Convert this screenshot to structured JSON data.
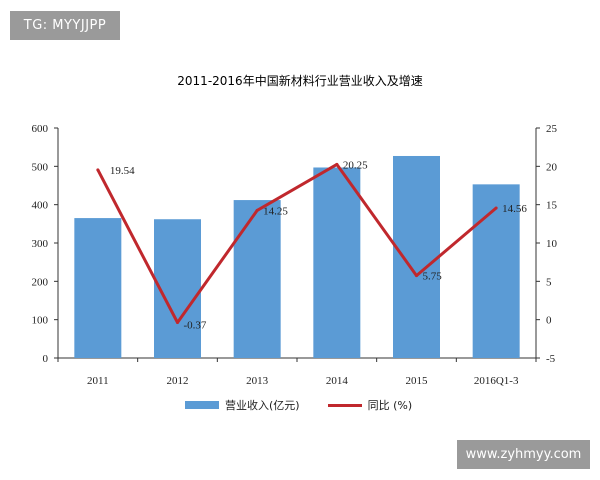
{
  "watermark_top": "TG: MYYJJPP",
  "watermark_bottom": "www.zyhmyy.com",
  "legend": {
    "bar_label": "营业收入(亿元)",
    "line_label": "同比 (%)"
  },
  "chart_data": {
    "type": "bar",
    "title": "2011-2016年中国新材料行业营业收入及增速",
    "categories": [
      "2011",
      "2012",
      "2013",
      "2014",
      "2015",
      "2016Q1-3"
    ],
    "series": [
      {
        "name": "营业收入(亿元)",
        "type": "bar",
        "axis": "left",
        "color": "#5b9bd5",
        "values": [
          365,
          362,
          412,
          497,
          527,
          453
        ]
      },
      {
        "name": "同比 (%)",
        "type": "line",
        "axis": "right",
        "color": "#c0282d",
        "values": [
          19.54,
          -0.37,
          14.25,
          20.25,
          5.75,
          14.56
        ],
        "labels": [
          "19.54",
          "-0.37",
          "14.25",
          "20.25",
          "5.75",
          "14.56"
        ]
      }
    ],
    "y_left": {
      "ylim": [
        0,
        600
      ],
      "ticks": [
        "0",
        "100",
        "200",
        "300",
        "400",
        "500",
        "600"
      ]
    },
    "y_right": {
      "ylim": [
        -5,
        25
      ],
      "ticks": [
        "-5",
        "0",
        "5",
        "10",
        "15",
        "20",
        "25"
      ]
    },
    "grid": false,
    "legend_position": "bottom"
  }
}
